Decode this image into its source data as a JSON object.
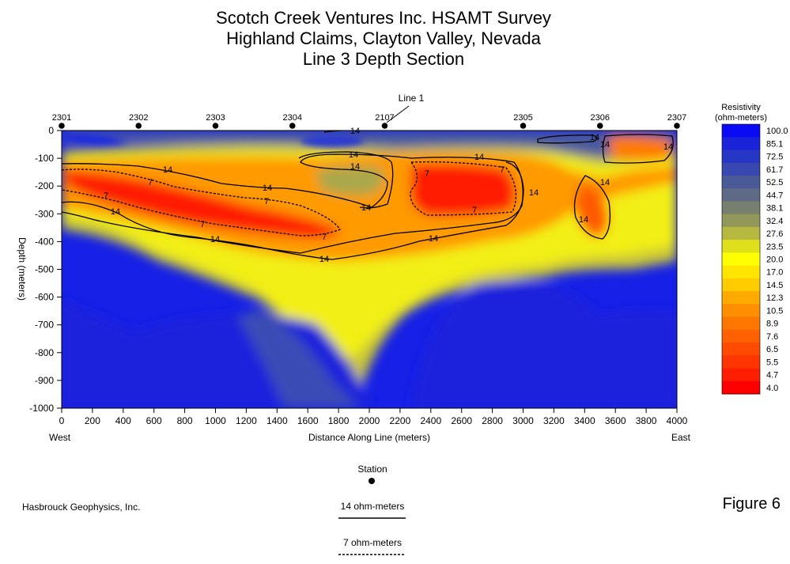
{
  "title_lines": [
    "Scotch Creek Ventures Inc. HSAMT Survey",
    "Highland Claims, Clayton Valley, Nevada",
    "Line 3 Depth Section"
  ],
  "chart_data": {
    "type": "heatmap",
    "xlabel": "Distance Along Line (meters)",
    "ylabel": "Depth (meters)",
    "xlim": [
      0,
      4000
    ],
    "ylim": [
      -1000,
      0
    ],
    "x_ticks": [
      0,
      200,
      400,
      600,
      800,
      1000,
      1200,
      1400,
      1600,
      1800,
      2000,
      2200,
      2400,
      2600,
      2800,
      3000,
      3200,
      3400,
      3600,
      3800,
      4000
    ],
    "y_ticks": [
      0,
      -100,
      -200,
      -300,
      -400,
      -500,
      -600,
      -700,
      -800,
      -900,
      -1000
    ],
    "end_labels": {
      "west": "West",
      "east": "East"
    },
    "stations": [
      {
        "name": "2301",
        "x": 0
      },
      {
        "name": "2302",
        "x": 500
      },
      {
        "name": "2303",
        "x": 1000
      },
      {
        "name": "2304",
        "x": 1500
      },
      {
        "name": "2107",
        "x": 2100
      },
      {
        "name": "2305",
        "x": 3000
      },
      {
        "name": "2306",
        "x": 3500
      },
      {
        "name": "2307",
        "x": 4000
      }
    ],
    "line_marker": {
      "label": "Line 1",
      "x": 2100
    },
    "colorbar": {
      "title_lines": [
        "Resistivity",
        "(ohm-meters)"
      ],
      "levels": [
        "100.0",
        "85.1",
        "72.5",
        "61.7",
        "52.5",
        "44.7",
        "38.1",
        "32.4",
        "27.6",
        "23.5",
        "20.0",
        "17.0",
        "14.5",
        "12.3",
        "10.5",
        "8.9",
        "7.6",
        "6.5",
        "5.5",
        "4.7",
        "4.0"
      ],
      "colors": [
        "#0a0af5",
        "#1b23d8",
        "#2537c4",
        "#3848b0",
        "#4a5998",
        "#5e6a86",
        "#77806e",
        "#92985a",
        "#b6b840",
        "#dfdf1c",
        "#ffff00",
        "#ffe500",
        "#ffcc00",
        "#ffaa00",
        "#ff8f00",
        "#ff7700",
        "#ff6000",
        "#ff4a00",
        "#ff3500",
        "#ff1e00",
        "#ff0000"
      ]
    },
    "contour_labels": {
      "c14": "14",
      "c7": "7"
    }
  },
  "legend": {
    "station_label": "Station",
    "c14_label": "14 ohm-meters",
    "c7_label": "7 ohm-meters"
  },
  "credit": "Hasbrouck Geophysics, Inc.",
  "figure_label": "Figure 6"
}
